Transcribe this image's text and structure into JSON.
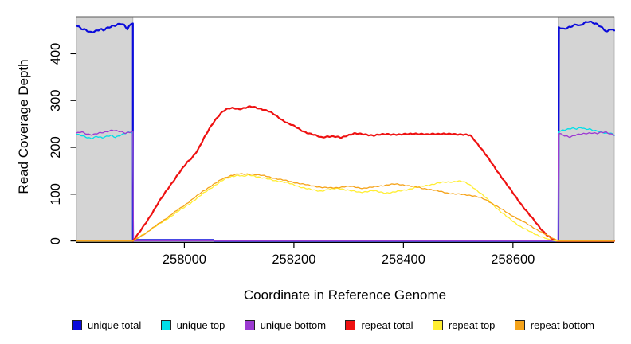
{
  "chart_data": {
    "type": "line",
    "title": "",
    "xlabel": "Coordinate in Reference Genome",
    "ylabel": "Read Coverage Depth",
    "xlim": [
      257803,
      258785
    ],
    "ylim": [
      0,
      479
    ],
    "xticks": [
      258000,
      258200,
      258400,
      258600
    ],
    "yticks": [
      0,
      100,
      200,
      300,
      400
    ],
    "grid": false,
    "legend_position": "bottom",
    "shaded_regions": [
      {
        "x0": 257803,
        "x1": 257906,
        "color": "#d4d4d4",
        "meaning": "unique-flank-left"
      },
      {
        "x0": 258684,
        "x1": 258785,
        "color": "#d4d4d4",
        "meaning": "unique-flank-right"
      }
    ],
    "series": [
      {
        "name": "unique total",
        "color": "#0b0bdb",
        "width": 2.2,
        "jitter": 3.2,
        "points": [
          [
            257803,
            461
          ],
          [
            257812,
            452
          ],
          [
            257820,
            449
          ],
          [
            257828,
            445
          ],
          [
            257838,
            449
          ],
          [
            257846,
            453
          ],
          [
            257852,
            450
          ],
          [
            257860,
            455
          ],
          [
            257868,
            459
          ],
          [
            257876,
            463
          ],
          [
            257884,
            466
          ],
          [
            257890,
            461
          ],
          [
            257896,
            452
          ],
          [
            257902,
            462
          ],
          [
            257906,
            465
          ],
          [
            257906,
            2
          ],
          [
            258053,
            2
          ],
          [
            258055,
            0
          ],
          [
            258683,
            0
          ],
          [
            258684,
            456
          ],
          [
            258692,
            451
          ],
          [
            258700,
            454
          ],
          [
            258708,
            459
          ],
          [
            258716,
            463
          ],
          [
            258722,
            459
          ],
          [
            258730,
            464
          ],
          [
            258738,
            468
          ],
          [
            258746,
            467
          ],
          [
            258754,
            464
          ],
          [
            258760,
            459
          ],
          [
            258766,
            452
          ],
          [
            258772,
            446
          ],
          [
            258778,
            453
          ],
          [
            258785,
            450
          ]
        ]
      },
      {
        "name": "unique top",
        "color": "#00dfe8",
        "width": 1.3,
        "jitter": 2.2,
        "points": [
          [
            257803,
            228
          ],
          [
            257812,
            225
          ],
          [
            257820,
            222
          ],
          [
            257830,
            220
          ],
          [
            257840,
            224
          ],
          [
            257850,
            220
          ],
          [
            257858,
            223
          ],
          [
            257866,
            226
          ],
          [
            257874,
            222
          ],
          [
            257882,
            225
          ],
          [
            257890,
            228
          ],
          [
            257898,
            231
          ],
          [
            257906,
            232
          ],
          [
            257907,
            0
          ],
          [
            258683,
            0
          ],
          [
            258684,
            233
          ],
          [
            258692,
            236
          ],
          [
            258700,
            239
          ],
          [
            258708,
            242
          ],
          [
            258716,
            240
          ],
          [
            258724,
            242
          ],
          [
            258732,
            239
          ],
          [
            258740,
            240
          ],
          [
            258748,
            237
          ],
          [
            258756,
            235
          ],
          [
            258764,
            231
          ],
          [
            258772,
            229
          ],
          [
            258778,
            231
          ],
          [
            258785,
            226
          ]
        ]
      },
      {
        "name": "unique bottom",
        "color": "#9c3ad2",
        "width": 1.3,
        "jitter": 2.2,
        "points": [
          [
            257803,
            230
          ],
          [
            257812,
            233
          ],
          [
            257822,
            229
          ],
          [
            257832,
            227
          ],
          [
            257842,
            229
          ],
          [
            257852,
            231
          ],
          [
            257860,
            234
          ],
          [
            257868,
            237
          ],
          [
            257876,
            235
          ],
          [
            257884,
            233
          ],
          [
            257892,
            230
          ],
          [
            257900,
            233
          ],
          [
            257906,
            235
          ],
          [
            257907,
            0
          ],
          [
            258683,
            0
          ],
          [
            258684,
            230
          ],
          [
            258694,
            226
          ],
          [
            258704,
            223
          ],
          [
            258714,
            226
          ],
          [
            258724,
            228
          ],
          [
            258734,
            230
          ],
          [
            258744,
            231
          ],
          [
            258754,
            229
          ],
          [
            258762,
            231
          ],
          [
            258770,
            232
          ],
          [
            258778,
            229
          ],
          [
            258785,
            227
          ]
        ]
      },
      {
        "name": "repeat total",
        "color": "#ee1111",
        "width": 2.2,
        "jitter": 2.0,
        "points": [
          [
            257906,
            0
          ],
          [
            257918,
            18
          ],
          [
            257935,
            48
          ],
          [
            257952,
            80
          ],
          [
            257970,
            112
          ],
          [
            257988,
            142
          ],
          [
            258005,
            168
          ],
          [
            258015,
            180
          ],
          [
            258025,
            196
          ],
          [
            258038,
            224
          ],
          [
            258050,
            248
          ],
          [
            258060,
            264
          ],
          [
            258070,
            276
          ],
          [
            258080,
            282
          ],
          [
            258090,
            284
          ],
          [
            258100,
            282
          ],
          [
            258110,
            284
          ],
          [
            258120,
            287
          ],
          [
            258130,
            286
          ],
          [
            258142,
            282
          ],
          [
            258154,
            277
          ],
          [
            258166,
            269
          ],
          [
            258178,
            259
          ],
          [
            258190,
            250
          ],
          [
            258202,
            244
          ],
          [
            258214,
            236
          ],
          [
            258226,
            230
          ],
          [
            258238,
            226
          ],
          [
            258250,
            222
          ],
          [
            258262,
            224
          ],
          [
            258274,
            223
          ],
          [
            258286,
            221
          ],
          [
            258298,
            226
          ],
          [
            258310,
            229
          ],
          [
            258322,
            228
          ],
          [
            258334,
            227
          ],
          [
            258346,
            225
          ],
          [
            258358,
            227
          ],
          [
            258370,
            229
          ],
          [
            258382,
            228
          ],
          [
            258394,
            227
          ],
          [
            258406,
            229
          ],
          [
            258418,
            230
          ],
          [
            258430,
            228
          ],
          [
            258442,
            227
          ],
          [
            258454,
            229
          ],
          [
            258466,
            228
          ],
          [
            258478,
            228
          ],
          [
            258490,
            229
          ],
          [
            258502,
            228
          ],
          [
            258512,
            227
          ],
          [
            258522,
            226
          ],
          [
            258530,
            216
          ],
          [
            258542,
            198
          ],
          [
            258554,
            178
          ],
          [
            258566,
            158
          ],
          [
            258578,
            138
          ],
          [
            258590,
            118
          ],
          [
            258602,
            99
          ],
          [
            258614,
            80
          ],
          [
            258626,
            62
          ],
          [
            258638,
            45
          ],
          [
            258650,
            28
          ],
          [
            258662,
            13
          ],
          [
            258672,
            4
          ],
          [
            258680,
            0
          ],
          [
            258785,
            0
          ]
        ]
      },
      {
        "name": "repeat top",
        "color": "#ffee33",
        "width": 1.3,
        "jitter": 2.0,
        "points": [
          [
            257803,
            0
          ],
          [
            257906,
            0
          ],
          [
            257925,
            14
          ],
          [
            257950,
            33
          ],
          [
            257975,
            53
          ],
          [
            258000,
            72
          ],
          [
            258015,
            84
          ],
          [
            258030,
            97
          ],
          [
            258045,
            110
          ],
          [
            258060,
            122
          ],
          [
            258075,
            133
          ],
          [
            258088,
            139
          ],
          [
            258098,
            141
          ],
          [
            258108,
            138
          ],
          [
            258118,
            141
          ],
          [
            258128,
            139
          ],
          [
            258140,
            135
          ],
          [
            258152,
            132
          ],
          [
            258164,
            129
          ],
          [
            258176,
            127
          ],
          [
            258188,
            124
          ],
          [
            258200,
            120
          ],
          [
            258212,
            116
          ],
          [
            258224,
            112
          ],
          [
            258236,
            109
          ],
          [
            258248,
            107
          ],
          [
            258260,
            109
          ],
          [
            258272,
            111
          ],
          [
            258284,
            112
          ],
          [
            258296,
            109
          ],
          [
            258308,
            106
          ],
          [
            258320,
            104
          ],
          [
            258332,
            106
          ],
          [
            258344,
            108
          ],
          [
            258356,
            105
          ],
          [
            258368,
            103
          ],
          [
            258380,
            104
          ],
          [
            258392,
            106
          ],
          [
            258404,
            109
          ],
          [
            258416,
            112
          ],
          [
            258428,
            115
          ],
          [
            258440,
            118
          ],
          [
            258452,
            121
          ],
          [
            258464,
            124
          ],
          [
            258476,
            126
          ],
          [
            258488,
            127
          ],
          [
            258500,
            128
          ],
          [
            258510,
            126
          ],
          [
            258520,
            121
          ],
          [
            258530,
            112
          ],
          [
            258542,
            100
          ],
          [
            258554,
            88
          ],
          [
            258566,
            75
          ],
          [
            258578,
            62
          ],
          [
            258590,
            51
          ],
          [
            258602,
            41
          ],
          [
            258614,
            31
          ],
          [
            258628,
            22
          ],
          [
            258642,
            14
          ],
          [
            258656,
            7
          ],
          [
            258670,
            2
          ],
          [
            258678,
            0
          ],
          [
            258785,
            0
          ]
        ]
      },
      {
        "name": "repeat bottom",
        "color": "#f5a31a",
        "width": 1.3,
        "jitter": 1.6,
        "points": [
          [
            257803,
            0
          ],
          [
            257906,
            0
          ],
          [
            257928,
            16
          ],
          [
            257952,
            36
          ],
          [
            257976,
            56
          ],
          [
            258000,
            76
          ],
          [
            258018,
            92
          ],
          [
            258036,
            108
          ],
          [
            258054,
            122
          ],
          [
            258070,
            133
          ],
          [
            258085,
            140
          ],
          [
            258098,
            143
          ],
          [
            258110,
            142
          ],
          [
            258122,
            143
          ],
          [
            258134,
            141
          ],
          [
            258146,
            139
          ],
          [
            258158,
            136
          ],
          [
            258170,
            133
          ],
          [
            258182,
            130
          ],
          [
            258194,
            127
          ],
          [
            258206,
            124
          ],
          [
            258218,
            121
          ],
          [
            258230,
            118
          ],
          [
            258242,
            116
          ],
          [
            258254,
            114
          ],
          [
            258266,
            113
          ],
          [
            258278,
            114
          ],
          [
            258290,
            116
          ],
          [
            258302,
            117
          ],
          [
            258314,
            115
          ],
          [
            258326,
            113
          ],
          [
            258338,
            114
          ],
          [
            258350,
            116
          ],
          [
            258362,
            118
          ],
          [
            258374,
            120
          ],
          [
            258386,
            121
          ],
          [
            258398,
            120
          ],
          [
            258410,
            118
          ],
          [
            258422,
            116
          ],
          [
            258434,
            113
          ],
          [
            258446,
            111
          ],
          [
            258458,
            108
          ],
          [
            258470,
            105
          ],
          [
            258482,
            102
          ],
          [
            258494,
            100
          ],
          [
            258506,
            99
          ],
          [
            258518,
            98
          ],
          [
            258530,
            96
          ],
          [
            258542,
            92
          ],
          [
            258554,
            86
          ],
          [
            258566,
            78
          ],
          [
            258578,
            69
          ],
          [
            258590,
            60
          ],
          [
            258602,
            52
          ],
          [
            258614,
            44
          ],
          [
            258626,
            36
          ],
          [
            258638,
            28
          ],
          [
            258650,
            20
          ],
          [
            258662,
            12
          ],
          [
            258672,
            6
          ],
          [
            258682,
            1
          ],
          [
            258684,
            0
          ],
          [
            258785,
            0
          ]
        ]
      }
    ]
  },
  "style": {
    "plot_background": "#ffffff",
    "shade_fill": "#d4d4d4",
    "shade_edge": "#ababab",
    "axis_color": "#000000",
    "box_top_color": "#5a5a5a",
    "tick_label_color": "#000000"
  }
}
